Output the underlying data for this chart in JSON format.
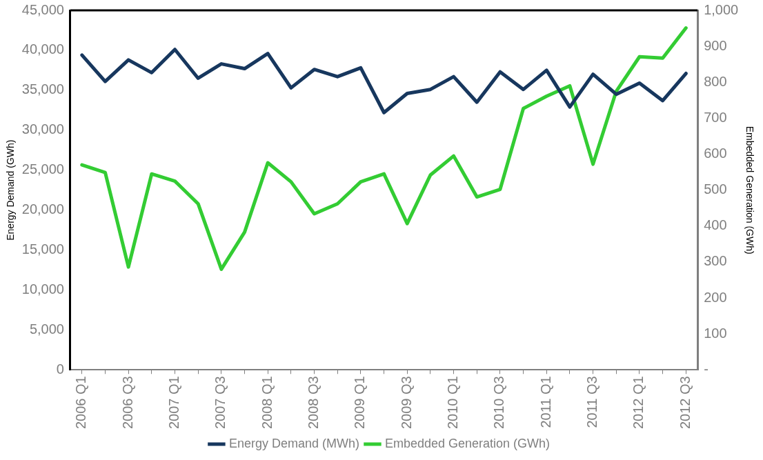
{
  "chart_data": {
    "type": "line",
    "ylabel": "Energy Demand (GWh)",
    "y2label": "Embedded Generation (GWh)",
    "categories": [
      "2006 Q1",
      null,
      "2006 Q3",
      null,
      "2007 Q1",
      null,
      "2007 Q3",
      null,
      "2008 Q1",
      null,
      "2008 Q3",
      null,
      "2009 Q1",
      null,
      "2009 Q3",
      null,
      "2010 Q1",
      null,
      "2010 Q3",
      null,
      "2011 Q1",
      null,
      "2011 Q3",
      null,
      "2012 Q1",
      null,
      "2012 Q3"
    ],
    "series": [
      {
        "name": "Energy Demand (MWh)",
        "color": "#17375e",
        "values": [
          39400,
          36100,
          38800,
          37200,
          40100,
          36500,
          38300,
          37700,
          39600,
          35300,
          37600,
          36700,
          37800,
          32200,
          34600,
          35100,
          36700,
          33500,
          37300,
          35100,
          37500,
          32900,
          37000,
          34500,
          35900,
          33700,
          37100
        ]
      },
      {
        "name": "Embedded Generation (GWh)",
        "color": "#33cc33",
        "axis": "y2",
        "values": [
          570,
          549,
          286,
          545,
          525,
          462,
          280,
          383,
          576,
          523,
          434,
          462,
          523,
          545,
          407,
          542,
          595,
          481,
          502,
          727,
          761,
          790,
          572,
          775,
          871,
          867,
          951
        ]
      }
    ],
    "ylim": [
      0,
      45000
    ],
    "yticks": [
      0,
      {
        "value": 5000,
        "label": "5,000"
      },
      {
        "value": 10000,
        "label": "10,000"
      },
      {
        "value": 15000,
        "label": "15,000"
      },
      {
        "value": 20000,
        "label": "20,000"
      },
      {
        "value": 25000,
        "label": "25,000"
      },
      {
        "value": 30000,
        "label": "30,000"
      },
      {
        "value": 35000,
        "label": "35,000"
      },
      {
        "value": 40000,
        "label": "40,000"
      },
      {
        "value": 45000,
        "label": "45,000"
      }
    ],
    "y2lim": [
      0,
      1000
    ],
    "y2ticks": [
      {
        "value": 0,
        "label": "-"
      },
      100,
      200,
      300,
      400,
      500,
      600,
      700,
      800,
      900,
      {
        "value": 1000,
        "label": "1,000"
      }
    ],
    "grid": false,
    "legend": "bottom",
    "marker": "none",
    "line_style": "solid"
  }
}
